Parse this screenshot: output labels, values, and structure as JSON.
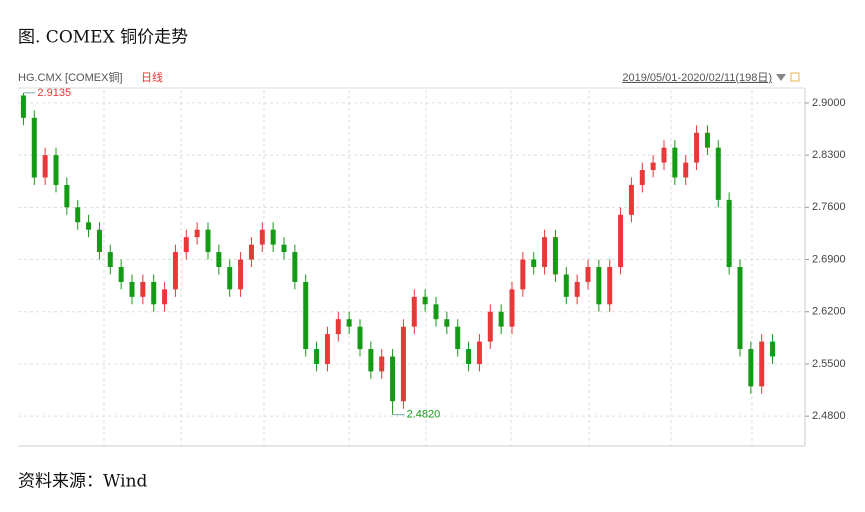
{
  "title": "图. COMEX 铜价走势",
  "source": "资料来源：Wind",
  "chart_data": {
    "type": "candlestick",
    "symbol": "HG.CMX [COMEX铜]",
    "period": "日线",
    "range": "2019/05/01-2020/02/11(198日)",
    "open": [
      2.91,
      2.88,
      2.8,
      2.83,
      2.79,
      2.76,
      2.74,
      2.73,
      2.7,
      2.68,
      2.66,
      2.64,
      2.66,
      2.63,
      2.65,
      2.7,
      2.72,
      2.73,
      2.7,
      2.68,
      2.65,
      2.69,
      2.71,
      2.73,
      2.71,
      2.7,
      2.66,
      2.57,
      2.55,
      2.59,
      2.61,
      2.6,
      2.57,
      2.54,
      2.56,
      2.5,
      2.6,
      2.64,
      2.63,
      2.61,
      2.6,
      2.57,
      2.55,
      2.58,
      2.62,
      2.6,
      2.65,
      2.69,
      2.68,
      2.72,
      2.67,
      2.64,
      2.66,
      2.68,
      2.63,
      2.68,
      2.75,
      2.79,
      2.81,
      2.82,
      2.84,
      2.8,
      2.82,
      2.86,
      2.84,
      2.77,
      2.68,
      2.57,
      2.52,
      2.58
    ],
    "high": [
      2.9135,
      2.89,
      2.84,
      2.84,
      2.8,
      2.77,
      2.75,
      2.74,
      2.71,
      2.69,
      2.67,
      2.67,
      2.67,
      2.66,
      2.71,
      2.73,
      2.74,
      2.74,
      2.71,
      2.69,
      2.7,
      2.72,
      2.74,
      2.74,
      2.72,
      2.71,
      2.67,
      2.58,
      2.6,
      2.62,
      2.62,
      2.61,
      2.58,
      2.57,
      2.57,
      2.61,
      2.65,
      2.65,
      2.64,
      2.62,
      2.61,
      2.58,
      2.59,
      2.63,
      2.63,
      2.66,
      2.7,
      2.7,
      2.73,
      2.73,
      2.68,
      2.67,
      2.69,
      2.69,
      2.69,
      2.76,
      2.8,
      2.82,
      2.83,
      2.85,
      2.85,
      2.83,
      2.87,
      2.87,
      2.85,
      2.78,
      2.69,
      2.58,
      2.59,
      2.59
    ],
    "low": [
      2.87,
      2.79,
      2.79,
      2.78,
      2.75,
      2.73,
      2.72,
      2.69,
      2.67,
      2.65,
      2.63,
      2.63,
      2.62,
      2.62,
      2.64,
      2.69,
      2.71,
      2.69,
      2.67,
      2.64,
      2.64,
      2.68,
      2.7,
      2.7,
      2.69,
      2.65,
      2.56,
      2.54,
      2.54,
      2.58,
      2.59,
      2.56,
      2.53,
      2.53,
      2.482,
      2.49,
      2.59,
      2.62,
      2.6,
      2.59,
      2.56,
      2.54,
      2.54,
      2.57,
      2.59,
      2.59,
      2.64,
      2.67,
      2.67,
      2.66,
      2.63,
      2.63,
      2.65,
      2.62,
      2.62,
      2.67,
      2.74,
      2.78,
      2.8,
      2.81,
      2.79,
      2.79,
      2.81,
      2.83,
      2.76,
      2.67,
      2.56,
      2.51,
      2.51,
      2.55
    ],
    "close": [
      2.88,
      2.8,
      2.83,
      2.79,
      2.76,
      2.74,
      2.73,
      2.7,
      2.68,
      2.66,
      2.64,
      2.66,
      2.63,
      2.65,
      2.7,
      2.72,
      2.73,
      2.7,
      2.68,
      2.65,
      2.69,
      2.71,
      2.73,
      2.71,
      2.7,
      2.66,
      2.57,
      2.55,
      2.59,
      2.61,
      2.6,
      2.57,
      2.54,
      2.56,
      2.5,
      2.6,
      2.64,
      2.63,
      2.61,
      2.6,
      2.57,
      2.55,
      2.58,
      2.62,
      2.6,
      2.65,
      2.69,
      2.68,
      2.72,
      2.67,
      2.64,
      2.66,
      2.68,
      2.63,
      2.68,
      2.75,
      2.79,
      2.81,
      2.82,
      2.84,
      2.8,
      2.82,
      2.86,
      2.84,
      2.77,
      2.68,
      2.57,
      2.52,
      2.58,
      2.56
    ],
    "up_color": "#e8393a",
    "down_color": "#159a15",
    "high_label": "2.9135",
    "low_label": "2.4820",
    "ylim": [
      2.44,
      2.92
    ],
    "yticks": [
      {
        "value": 2.48,
        "label": "2.4800"
      },
      {
        "value": 2.55,
        "label": "2.5500"
      },
      {
        "value": 2.62,
        "label": "2.6200"
      },
      {
        "value": 2.69,
        "label": "2.6900"
      },
      {
        "value": 2.76,
        "label": "2.7600"
      },
      {
        "value": 2.83,
        "label": "2.8300"
      },
      {
        "value": 2.9,
        "label": "2.9000"
      }
    ],
    "grid": true
  }
}
